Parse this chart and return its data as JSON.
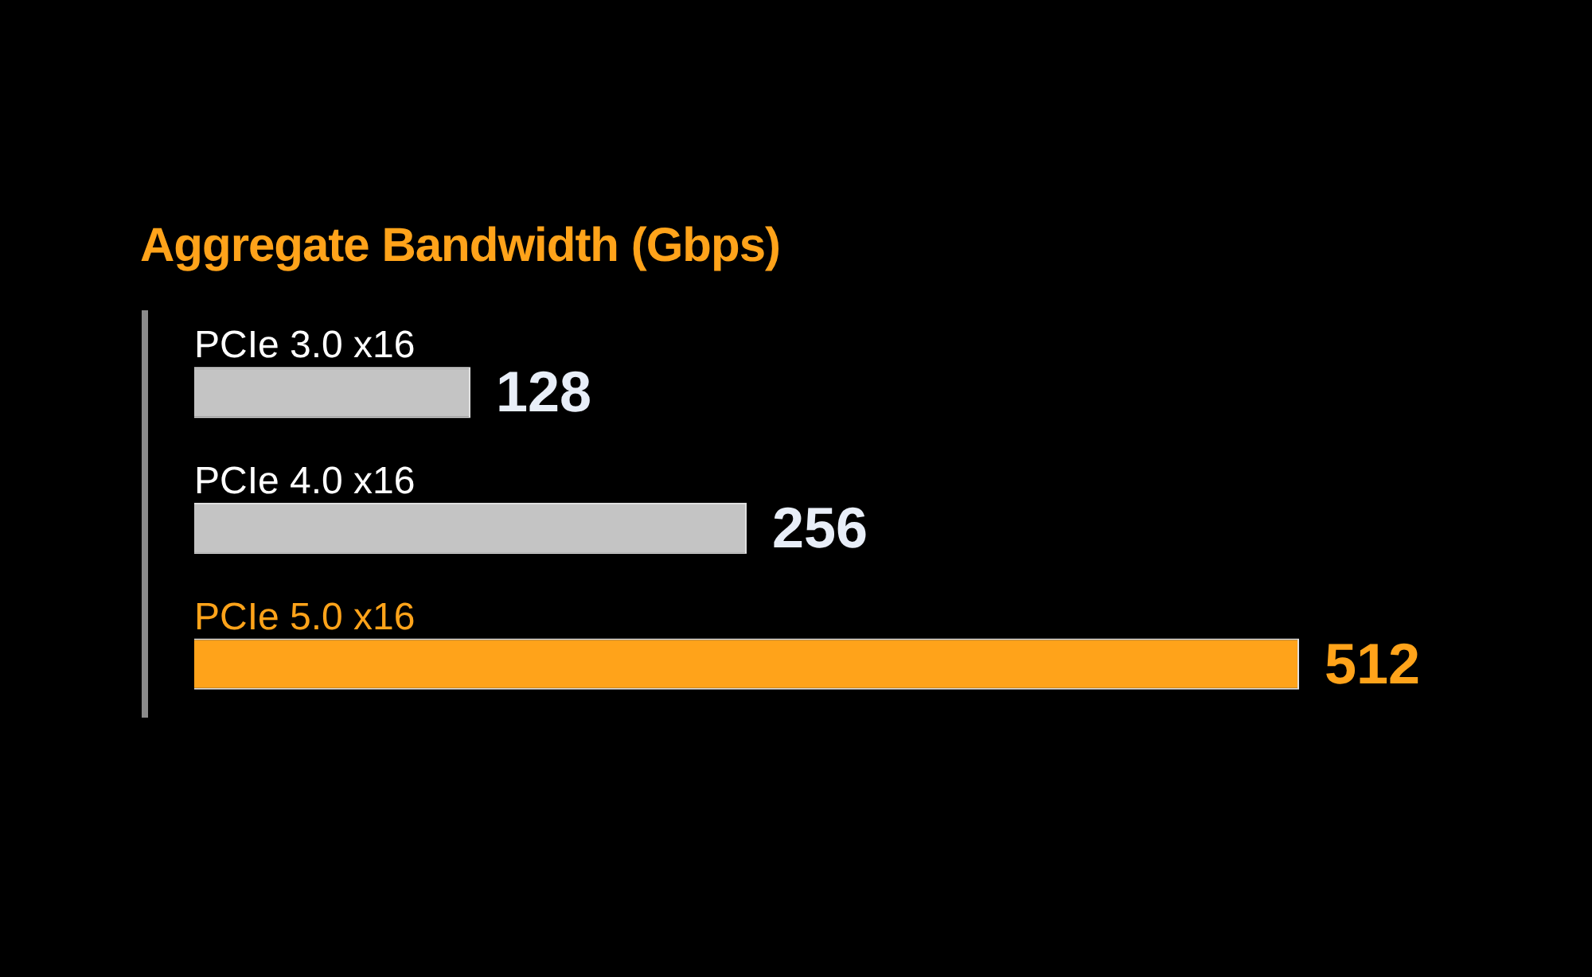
{
  "chart_data": {
    "type": "bar",
    "orientation": "horizontal",
    "title": "Aggregate Bandwidth (Gbps)",
    "categories": [
      "PCIe 3.0 x16",
      "PCIe 4.0 x16",
      "PCIe 5.0 x16"
    ],
    "values": [
      128,
      256,
      512
    ],
    "colors": [
      "#c4c4c4",
      "#c4c4c4",
      "#ffa31a"
    ],
    "data_labels": true,
    "legend": false
  }
}
